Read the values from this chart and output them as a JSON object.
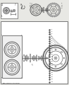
{
  "bg_color": "#e8e8e4",
  "white": "#ffffff",
  "border_color": "#777777",
  "line_color": "#444444",
  "dot_color": "#222222",
  "fig_width": 0.98,
  "fig_height": 1.2,
  "dpi": 100
}
